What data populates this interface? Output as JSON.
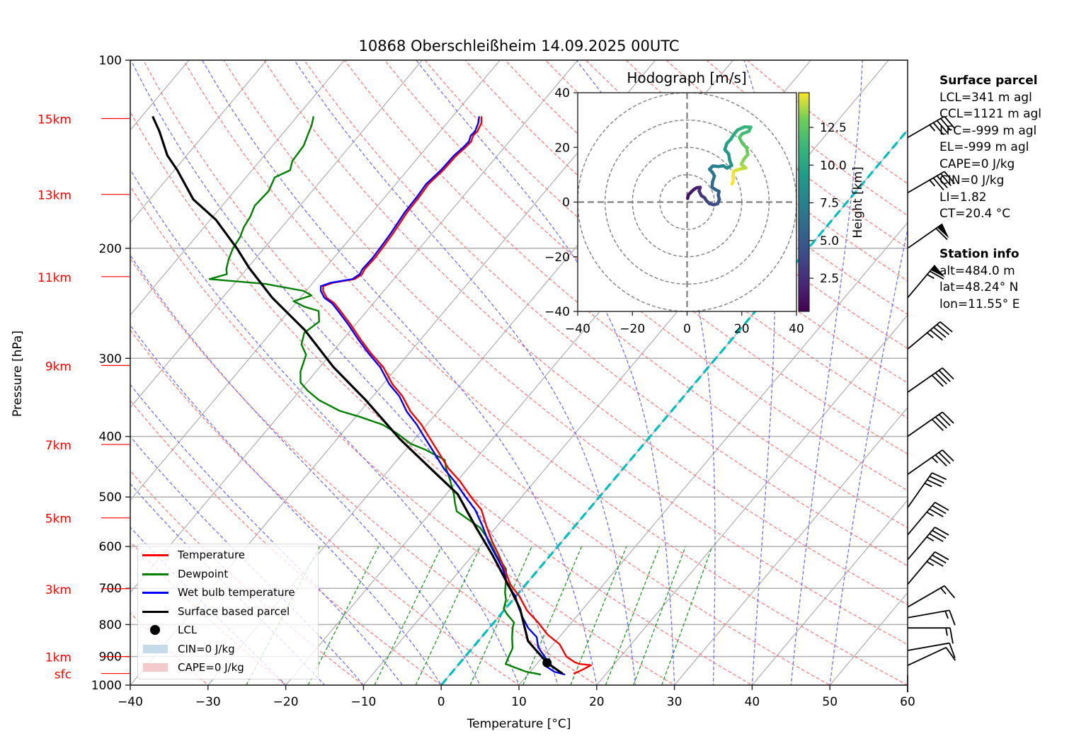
{
  "chart_data": {
    "type": "line",
    "subtype": "skew-T log-P diagram",
    "title": "10868 Oberschleißheim 14.09.2025 00UTC",
    "xlabel": "Temperature [°C]",
    "ylabel": "Pressure [hPa]",
    "xlim": [
      -40,
      60
    ],
    "ylim": [
      1000,
      100
    ],
    "x_ticks": [
      -40,
      -30,
      -20,
      -10,
      0,
      10,
      20,
      30,
      40,
      50,
      60
    ],
    "y_ticks": [
      100,
      200,
      300,
      400,
      500,
      600,
      700,
      800,
      900,
      1000
    ],
    "height_markers": [
      {
        "label": "15km",
        "p": 124
      },
      {
        "label": "13km",
        "p": 164
      },
      {
        "label": "11km",
        "p": 222
      },
      {
        "label": "9km",
        "p": 308
      },
      {
        "label": "7km",
        "p": 412
      },
      {
        "label": "5km",
        "p": 540
      },
      {
        "label": "3km",
        "p": 701
      },
      {
        "label": "1km",
        "p": 900
      },
      {
        "label": "sfc",
        "p": 958
      }
    ],
    "freezing_level_isotherm": 0,
    "series": [
      {
        "name": "Temperature",
        "color": "#ff0000",
        "points": [
          [
            959,
            15.8
          ],
          [
            945,
            16.5
          ],
          [
            929,
            17.1
          ],
          [
            925,
            15.5
          ],
          [
            919,
            14.7
          ],
          [
            900,
            13.0
          ],
          [
            860,
            10.8
          ],
          [
            830,
            8.2
          ],
          [
            794,
            5.7
          ],
          [
            760,
            3.0
          ],
          [
            720,
            0.4
          ],
          [
            690,
            -2.0
          ],
          [
            652,
            -4.4
          ],
          [
            620,
            -6.6
          ],
          [
            590,
            -8.9
          ],
          [
            555,
            -11.5
          ],
          [
            524,
            -13.8
          ],
          [
            500,
            -16.5
          ],
          [
            472,
            -19.6
          ],
          [
            450,
            -22.5
          ],
          [
            425,
            -25.4
          ],
          [
            400,
            -28.5
          ],
          [
            383,
            -30.7
          ],
          [
            365,
            -33.5
          ],
          [
            345,
            -36.2
          ],
          [
            330,
            -38.8
          ],
          [
            310,
            -41.8
          ],
          [
            295,
            -44.8
          ],
          [
            280,
            -47.7
          ],
          [
            265,
            -50.6
          ],
          [
            252,
            -53.4
          ],
          [
            245,
            -55.0
          ],
          [
            240,
            -56.6
          ],
          [
            234,
            -57.8
          ],
          [
            230,
            -58.3
          ],
          [
            227,
            -57.4
          ],
          [
            224,
            -55.0
          ],
          [
            220,
            -54.6
          ],
          [
            216,
            -54.8
          ],
          [
            208,
            -54.7
          ],
          [
            200,
            -54.8
          ],
          [
            190,
            -55.0
          ],
          [
            175,
            -55.5
          ],
          [
            165,
            -55.6
          ],
          [
            158,
            -55.8
          ],
          [
            150,
            -55.4
          ],
          [
            142,
            -55.3
          ],
          [
            138,
            -55.0
          ],
          [
            135,
            -54.9
          ],
          [
            132,
            -55.3
          ],
          [
            130,
            -55.2
          ],
          [
            126,
            -55.6
          ],
          [
            123,
            -56.3
          ]
        ]
      },
      {
        "name": "Dewpoint",
        "color": "#008000",
        "points": [
          [
            962,
            11.7
          ],
          [
            952,
            9.5
          ],
          [
            935,
            7.3
          ],
          [
            925,
            6.0
          ],
          [
            900,
            5.6
          ],
          [
            873,
            5.2
          ],
          [
            840,
            4.0
          ],
          [
            810,
            3.0
          ],
          [
            794,
            2.6
          ],
          [
            770,
            0.8
          ],
          [
            755,
            -0.2
          ],
          [
            730,
            -0.9
          ],
          [
            711,
            -1.8
          ],
          [
            680,
            -3.0
          ],
          [
            652,
            -4.2
          ],
          [
            635,
            -5.6
          ],
          [
            620,
            -6.9
          ],
          [
            590,
            -9.2
          ],
          [
            560,
            -12.0
          ],
          [
            527,
            -16.8
          ],
          [
            510,
            -18.0
          ],
          [
            495,
            -19.0
          ],
          [
            470,
            -21.0
          ],
          [
            450,
            -22.8
          ],
          [
            436,
            -23.9
          ],
          [
            420,
            -27.5
          ],
          [
            411,
            -30.0
          ],
          [
            395,
            -33.0
          ],
          [
            383,
            -35.7
          ],
          [
            372,
            -39.5
          ],
          [
            364,
            -42.7
          ],
          [
            350,
            -46.5
          ],
          [
            338,
            -49.0
          ],
          [
            328,
            -50.8
          ],
          [
            315,
            -52.0
          ],
          [
            296,
            -53.1
          ],
          [
            285,
            -54.8
          ],
          [
            273,
            -55.7
          ],
          [
            262,
            -55.0
          ],
          [
            252,
            -56.2
          ],
          [
            248,
            -58.5
          ],
          [
            243,
            -60.5
          ],
          [
            238,
            -58.8
          ],
          [
            234,
            -60.3
          ],
          [
            228,
            -66.0
          ],
          [
            224,
            -73.7
          ],
          [
            220,
            -72.0
          ],
          [
            216,
            -72.6
          ],
          [
            208,
            -73.4
          ],
          [
            200,
            -74.0
          ],
          [
            192,
            -74.3
          ],
          [
            185,
            -74.9
          ],
          [
            178,
            -75.2
          ],
          [
            171,
            -75.8
          ],
          [
            162,
            -75.6
          ],
          [
            154,
            -76.3
          ],
          [
            150,
            -75.1
          ],
          [
            145,
            -75.8
          ],
          [
            137,
            -76.0
          ],
          [
            132,
            -76.6
          ],
          [
            127,
            -77.2
          ],
          [
            123,
            -77.9
          ]
        ]
      },
      {
        "name": "Wet bulb temperature",
        "color": "#0000ff",
        "points": [
          [
            962,
            14.8
          ],
          [
            952,
            13.1
          ],
          [
            930,
            11.2
          ],
          [
            905,
            10.5
          ],
          [
            870,
            8.4
          ],
          [
            838,
            7.1
          ],
          [
            810,
            5.0
          ],
          [
            780,
            3.2
          ],
          [
            750,
            1.5
          ],
          [
            720,
            -0.1
          ],
          [
            690,
            -2.4
          ],
          [
            652,
            -4.6
          ],
          [
            620,
            -7.0
          ],
          [
            590,
            -9.4
          ],
          [
            555,
            -12.0
          ],
          [
            524,
            -14.6
          ],
          [
            500,
            -17.2
          ],
          [
            472,
            -20.3
          ],
          [
            450,
            -23.1
          ],
          [
            425,
            -26.0
          ],
          [
            400,
            -29.1
          ],
          [
            383,
            -31.3
          ],
          [
            365,
            -34.0
          ],
          [
            345,
            -36.6
          ],
          [
            330,
            -39.2
          ],
          [
            310,
            -42.2
          ],
          [
            295,
            -45.1
          ],
          [
            280,
            -48.0
          ],
          [
            265,
            -50.9
          ],
          [
            252,
            -53.7
          ],
          [
            245,
            -55.3
          ],
          [
            240,
            -56.9
          ],
          [
            234,
            -58.1
          ],
          [
            230,
            -58.6
          ],
          [
            227,
            -57.7
          ],
          [
            224,
            -55.3
          ],
          [
            220,
            -54.9
          ],
          [
            216,
            -55.1
          ],
          [
            208,
            -55.0
          ],
          [
            200,
            -55.1
          ],
          [
            190,
            -55.3
          ],
          [
            175,
            -55.8
          ],
          [
            165,
            -55.9
          ],
          [
            158,
            -56.1
          ],
          [
            150,
            -55.7
          ],
          [
            142,
            -55.6
          ],
          [
            138,
            -55.3
          ],
          [
            135,
            -55.2
          ],
          [
            132,
            -55.6
          ],
          [
            130,
            -55.5
          ],
          [
            126,
            -56.0
          ],
          [
            123,
            -56.6
          ]
        ]
      },
      {
        "name": "Surface based parcel",
        "color": "#000000",
        "points": [
          [
            959,
            14.4
          ],
          [
            921,
            11.2
          ],
          [
            850,
            6.4
          ],
          [
            755,
            1.9
          ],
          [
            700,
            -1.6
          ],
          [
            620,
            -7.4
          ],
          [
            560,
            -12.5
          ],
          [
            495,
            -18.5
          ],
          [
            450,
            -24.8
          ],
          [
            404,
            -31.9
          ],
          [
            350,
            -40.5
          ],
          [
            310,
            -48.2
          ],
          [
            270,
            -56.0
          ],
          [
            240,
            -63.6
          ],
          [
            215,
            -69.8
          ],
          [
            200,
            -73.5
          ],
          [
            180,
            -79.3
          ],
          [
            167,
            -84.4
          ],
          [
            150,
            -89.6
          ],
          [
            142,
            -92.5
          ],
          [
            130,
            -96.1
          ],
          [
            123,
            -98.6
          ]
        ]
      }
    ],
    "lcl": {
      "label": "LCL",
      "p": 921,
      "t": 11.2
    },
    "legend": {
      "placement": "lower-left",
      "entries": [
        {
          "label": "Temperature",
          "kind": "line",
          "color": "#ff0000"
        },
        {
          "label": "Dewpoint",
          "kind": "line",
          "color": "#008000"
        },
        {
          "label": "Wet bulb temperature",
          "kind": "line",
          "color": "#0000ff"
        },
        {
          "label": "Surface based parcel",
          "kind": "line",
          "color": "#000000"
        },
        {
          "label": "LCL",
          "kind": "marker",
          "color": "#000000"
        },
        {
          "label": "CIN=0 J/kg",
          "kind": "patch",
          "color": "#c6dbea"
        },
        {
          "label": "CAPE=0 J/kg",
          "kind": "patch",
          "color": "#f3c9cc"
        }
      ]
    },
    "wind_barbs": [
      {
        "p": 133,
        "speed_kt": 45,
        "dir_deg": 240
      },
      {
        "p": 163,
        "speed_kt": 45,
        "dir_deg": 240
      },
      {
        "p": 200,
        "speed_kt": 60,
        "dir_deg": 235
      },
      {
        "p": 240,
        "speed_kt": 65,
        "dir_deg": 220
      },
      {
        "p": 290,
        "speed_kt": 45,
        "dir_deg": 230
      },
      {
        "p": 340,
        "speed_kt": 40,
        "dir_deg": 235
      },
      {
        "p": 400,
        "speed_kt": 40,
        "dir_deg": 235
      },
      {
        "p": 460,
        "speed_kt": 35,
        "dir_deg": 235
      },
      {
        "p": 520,
        "speed_kt": 35,
        "dir_deg": 215
      },
      {
        "p": 575,
        "speed_kt": 35,
        "dir_deg": 220
      },
      {
        "p": 630,
        "speed_kt": 35,
        "dir_deg": 220
      },
      {
        "p": 690,
        "speed_kt": 35,
        "dir_deg": 220
      },
      {
        "p": 750,
        "speed_kt": 15,
        "dir_deg": 240
      },
      {
        "p": 780,
        "speed_kt": 15,
        "dir_deg": 260
      },
      {
        "p": 810,
        "speed_kt": 15,
        "dir_deg": 270
      },
      {
        "p": 880,
        "speed_kt": 10,
        "dir_deg": 260
      },
      {
        "p": 930,
        "speed_kt": 10,
        "dir_deg": 245
      },
      {
        "p": 995,
        "speed_kt": 0,
        "dir_deg": 0
      }
    ],
    "hodograph": {
      "title": "Hodograph [m/s]",
      "xlim": [
        -40,
        40
      ],
      "ylim": [
        -40,
        40
      ],
      "x_ticks": [
        -40,
        -20,
        0,
        20,
        40
      ],
      "y_ticks": [
        -40,
        -20,
        0,
        20,
        40
      ],
      "rings": [
        10,
        20,
        30,
        40
      ],
      "colorbar": {
        "label": "Height [km]",
        "ticks": [
          2.5,
          5.0,
          7.5,
          10.0,
          12.5
        ],
        "range": [
          0.3,
          14.8
        ],
        "colormap": "viridis"
      },
      "points": [
        [
          0.2,
          1.3,
          0.5
        ],
        [
          0.5,
          2.6,
          0.8
        ],
        [
          1.6,
          3.8,
          1.1
        ],
        [
          2.6,
          4.7,
          1.4
        ],
        [
          3.7,
          5.3,
          1.7
        ],
        [
          4.8,
          5.4,
          2.0
        ],
        [
          4.4,
          4.0,
          2.3
        ],
        [
          5.2,
          2.4,
          2.6
        ],
        [
          6.4,
          1.6,
          2.9
        ],
        [
          7.0,
          0.6,
          3.2
        ],
        [
          8.2,
          -0.6,
          3.5
        ],
        [
          9.8,
          -1.0,
          3.8
        ],
        [
          11.2,
          -0.6,
          4.1
        ],
        [
          11.8,
          0.9,
          4.4
        ],
        [
          11.4,
          2.6,
          4.7
        ],
        [
          11.7,
          3.9,
          5.0
        ],
        [
          10.3,
          4.6,
          5.3
        ],
        [
          9.1,
          5.4,
          5.6
        ],
        [
          9.3,
          7.4,
          5.9
        ],
        [
          10.0,
          9.5,
          6.2
        ],
        [
          9.4,
          10.7,
          6.5
        ],
        [
          8.2,
          12.0,
          6.8
        ],
        [
          9.4,
          13.2,
          7.1
        ],
        [
          11.4,
          13.0,
          7.4
        ],
        [
          13.2,
          13.3,
          7.7
        ],
        [
          14.6,
          12.4,
          8.0
        ],
        [
          16.3,
          13.4,
          8.3
        ],
        [
          15.6,
          15.2,
          8.6
        ],
        [
          15.2,
          17.6,
          8.9
        ],
        [
          13.8,
          19.2,
          9.2
        ],
        [
          14.5,
          21.4,
          9.5
        ],
        [
          16.0,
          23.0,
          9.8
        ],
        [
          17.1,
          24.8,
          10.1
        ],
        [
          18.5,
          26.4,
          10.4
        ],
        [
          21.0,
          27.5,
          10.7
        ],
        [
          23.3,
          27.4,
          11.0
        ],
        [
          22.6,
          25.9,
          11.3
        ],
        [
          20.2,
          25.0,
          11.6
        ],
        [
          19.1,
          23.6,
          11.9
        ],
        [
          20.3,
          21.4,
          12.2
        ],
        [
          21.8,
          19.7,
          12.5
        ],
        [
          22.2,
          17.4,
          12.8
        ],
        [
          20.7,
          15.6,
          13.1
        ],
        [
          19.8,
          13.8,
          13.4
        ],
        [
          21.5,
          12.5,
          13.7
        ],
        [
          19.0,
          12.0,
          14.0
        ],
        [
          17.1,
          11.3,
          14.3
        ],
        [
          16.8,
          10.0,
          14.5
        ],
        [
          16.9,
          8.2,
          14.7
        ],
        [
          16.5,
          6.6,
          14.8
        ]
      ]
    }
  },
  "info_panel": {
    "surface_parcel": {
      "heading": "Surface parcel",
      "lines": [
        "LCL=341 m agl",
        "CCL=1121 m agl",
        "LFC=-999 m agl",
        "EL=-999 m agl",
        "CAPE=0 J/kg",
        "CIN=0 J/kg",
        "LI=1.82",
        "CT=20.4 °C"
      ]
    },
    "station_info": {
      "heading": "Station info",
      "lines": [
        "alt=484.0 m",
        "lat=48.24° N",
        "lon=11.55° E"
      ]
    }
  }
}
